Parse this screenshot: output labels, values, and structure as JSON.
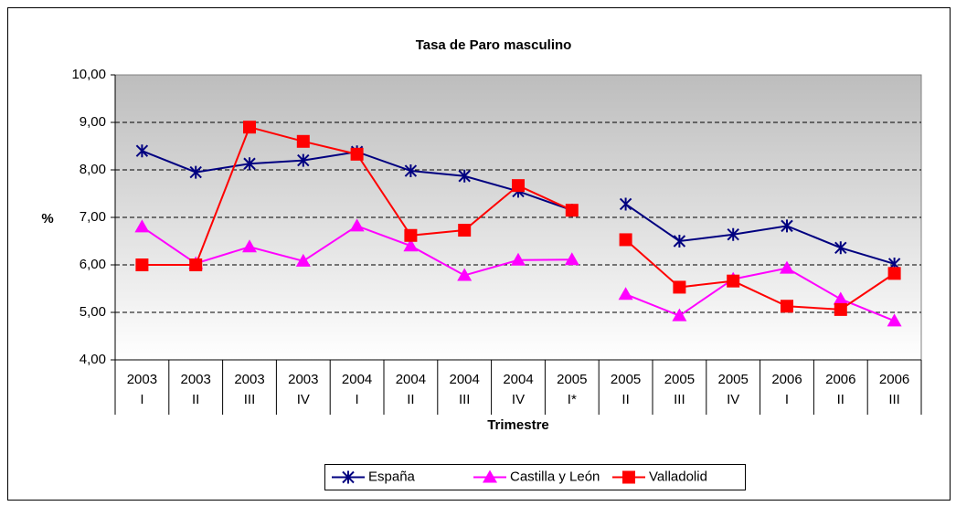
{
  "chart_data": {
    "type": "line",
    "title": "Tasa de Paro masculino",
    "y_label": "%",
    "x_label": "Trimestre",
    "categories": [
      [
        "2003",
        "I"
      ],
      [
        "2003",
        "II"
      ],
      [
        "2003",
        "III"
      ],
      [
        "2003",
        "IV"
      ],
      [
        "2004",
        "I"
      ],
      [
        "2004",
        "II"
      ],
      [
        "2004",
        "III"
      ],
      [
        "2004",
        "IV"
      ],
      [
        "2005",
        "I*"
      ],
      [
        "2005",
        "II"
      ],
      [
        "2005",
        "III"
      ],
      [
        "2005",
        "IV"
      ],
      [
        "2006",
        "I"
      ],
      [
        "2006",
        "II"
      ],
      [
        "2006",
        "III"
      ]
    ],
    "break_before": [
      9
    ],
    "series": [
      {
        "name": "España",
        "color": "#000080",
        "marker": "star",
        "values": [
          8.4,
          7.95,
          8.13,
          8.2,
          8.38,
          7.98,
          7.87,
          7.55,
          7.15,
          7.28,
          6.5,
          6.64,
          6.82,
          6.36,
          6.02
        ]
      },
      {
        "name": "Castilla y León",
        "color": "#ff00ff",
        "marker": "triangle",
        "values": [
          6.8,
          6.03,
          6.38,
          6.08,
          6.82,
          6.4,
          5.78,
          6.1,
          6.11,
          5.38,
          4.93,
          5.7,
          5.93,
          5.28,
          4.82
        ]
      },
      {
        "name": "Valladolid",
        "color": "#ff0000",
        "marker": "square",
        "values": [
          6.0,
          6.0,
          8.9,
          8.6,
          8.33,
          6.62,
          6.73,
          7.67,
          7.15,
          6.53,
          5.53,
          5.66,
          5.13,
          5.06,
          5.82
        ]
      }
    ],
    "ylim": [
      4,
      10
    ],
    "yticks": [
      {
        "value": 4,
        "label": "4,00"
      },
      {
        "value": 5,
        "label": "5,00"
      },
      {
        "value": 6,
        "label": "6,00"
      },
      {
        "value": 7,
        "label": "7,00"
      },
      {
        "value": 8,
        "label": "8,00"
      },
      {
        "value": 9,
        "label": "9,00"
      },
      {
        "value": 10,
        "label": "10,00"
      }
    ],
    "grid": true,
    "legend": "bottom"
  }
}
